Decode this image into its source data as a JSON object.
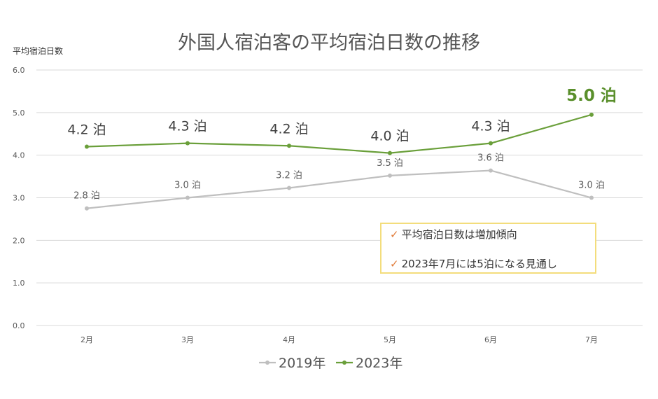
{
  "chart_data": {
    "type": "line",
    "title": "外国人宿泊客の平均宿泊日数の推移",
    "ylabel": "平均宿泊日数",
    "xlabel": "",
    "categories": [
      "2月",
      "3月",
      "4月",
      "5月",
      "6月",
      "7月"
    ],
    "ylim": [
      0,
      6
    ],
    "yticks": [
      "0.0",
      "1.0",
      "2.0",
      "3.0",
      "4.0",
      "5.0",
      "6.0"
    ],
    "grid": true,
    "legend_position": "bottom",
    "series": [
      {
        "name": "2019年",
        "color": "#bfbfbf",
        "values": [
          2.75,
          3.0,
          3.23,
          3.52,
          3.64,
          3.0
        ],
        "labels": [
          "2.8 泊",
          "3.0 泊",
          "3.2 泊",
          "3.5 泊",
          "3.6 泊",
          "3.0 泊"
        ]
      },
      {
        "name": "2023年",
        "color": "#6a9f3a",
        "values": [
          4.2,
          4.28,
          4.22,
          4.05,
          4.28,
          4.95
        ],
        "labels": [
          "4.2 泊",
          "4.3 泊",
          "4.2 泊",
          "4.0 泊",
          "4.3 泊",
          "5.0 泊"
        ]
      }
    ]
  },
  "notes": {
    "items": [
      "平均宿泊日数は増加傾向",
      "2023年7月には5泊になる見通し"
    ],
    "check_glyph": "✓",
    "border_color": "#f3dd7c",
    "check_color": "#e07b39"
  }
}
